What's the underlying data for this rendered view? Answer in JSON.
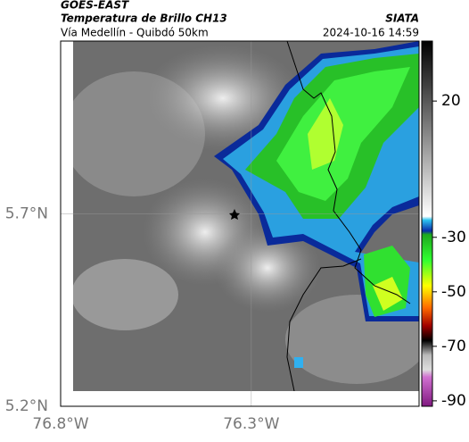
{
  "header": {
    "title": "GOES-EAST",
    "subtitle": "Temperatura de Brillo CH13",
    "region": "Vía Medellín - Quibdó 50km",
    "source": "SIATA",
    "datetime": "2024-10-16 14:59"
  },
  "map": {
    "xlim": [
      -76.8,
      -75.86
    ],
    "ylim": [
      5.2,
      6.15
    ],
    "xticks": [
      {
        "value": -76.8,
        "label": "76.8°W"
      },
      {
        "value": -76.3,
        "label": "76.3°W"
      }
    ],
    "yticks": [
      {
        "value": 5.2,
        "label": "5.2°N"
      },
      {
        "value": 5.7,
        "label": "5.7°N"
      }
    ]
  },
  "colorbar": {
    "lim": [
      -92,
      42
    ],
    "ticks": [
      20,
      -30,
      -50,
      -70,
      -90
    ]
  }
}
